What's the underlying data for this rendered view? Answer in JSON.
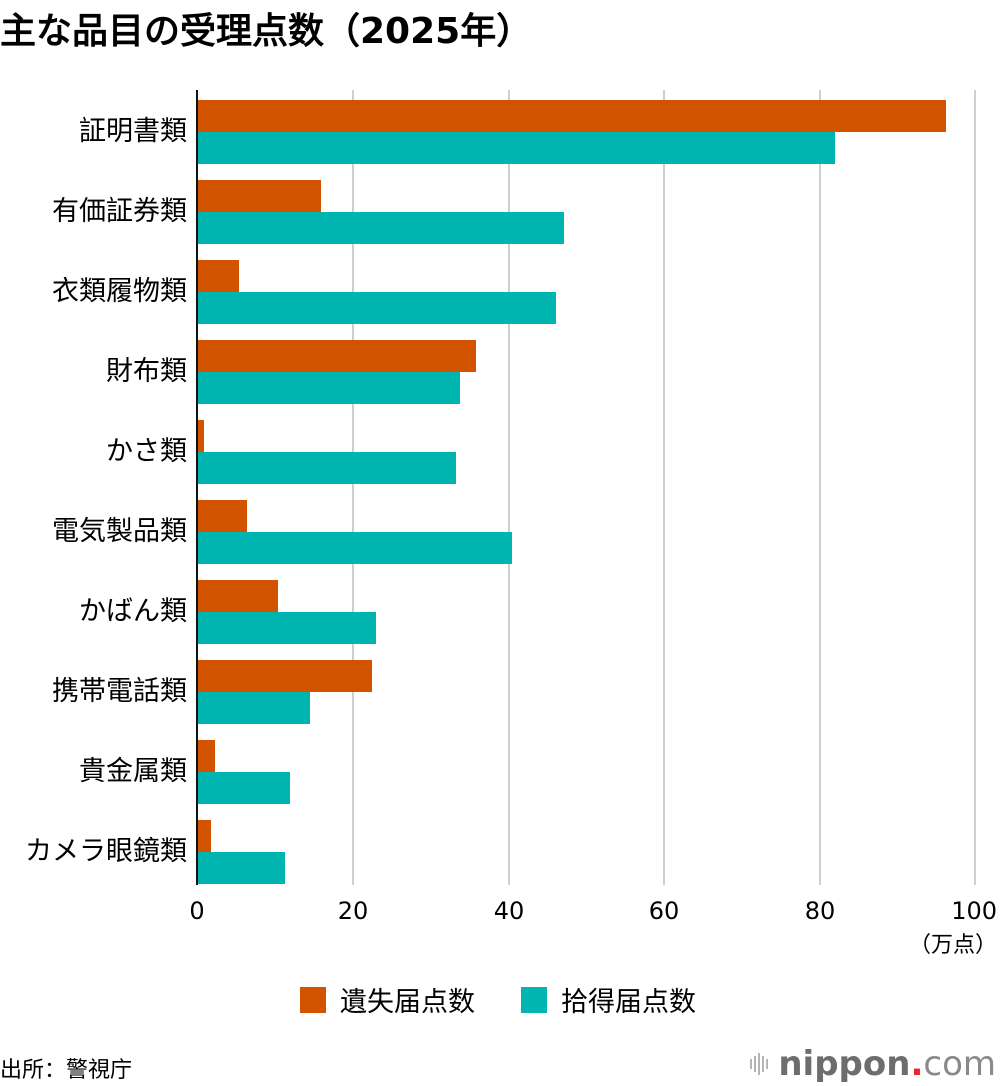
{
  "title": "主な品目の受理点数（2025年）",
  "colors": {
    "lost": "#d35400",
    "found": "#00b5b0",
    "grid": "#cfcfcf"
  },
  "axis": {
    "ticks": [
      "0",
      "20",
      "40",
      "60",
      "80",
      "100"
    ],
    "unit": "（万点）"
  },
  "legend": {
    "lost": "遺失届点数",
    "found": "拾得届点数"
  },
  "source": "出所：警視庁",
  "logo": {
    "name": "nippon",
    "dot": ".",
    "suffix": "com"
  },
  "chart_data": {
    "type": "bar",
    "orientation": "horizontal",
    "title": "主な品目の受理点数（2025年）",
    "xlabel": "（万点）",
    "ylabel": "",
    "xlim": [
      0,
      100
    ],
    "grid": true,
    "legend_position": "bottom",
    "categories": [
      "証明書類",
      "有価証券類",
      "衣類履物類",
      "財布類",
      "かさ類",
      "電気製品類",
      "かばん類",
      "携帯電話類",
      "貴金属類",
      "カメラ眼鏡類"
    ],
    "series": [
      {
        "name": "遺失届点数",
        "color": "#d35400",
        "values": [
          96.3,
          15.9,
          5.4,
          35.9,
          0.9,
          6.4,
          10.4,
          22.5,
          2.3,
          1.8
        ]
      },
      {
        "name": "拾得届点数",
        "color": "#00b5b0",
        "values": [
          82.0,
          47.2,
          46.1,
          33.8,
          33.3,
          40.5,
          23.0,
          14.5,
          12.0,
          11.3
        ]
      }
    ],
    "source": "出所：警視庁"
  }
}
